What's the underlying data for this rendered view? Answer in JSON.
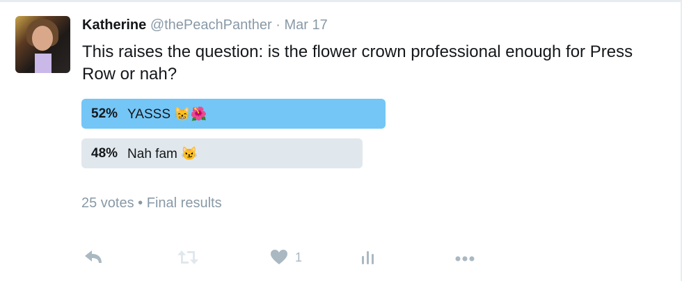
{
  "tweet": {
    "author_name": "Katherine",
    "handle": "@thePeachPanther",
    "separator": "·",
    "date": "Mar 17",
    "text": "This raises the question: is the flower crown professional enough for Press Row or nah?"
  },
  "poll": {
    "options": [
      {
        "percent": "52%",
        "label": "YASSS 😸🌺",
        "value": 52,
        "winner": true
      },
      {
        "percent": "48%",
        "label": "Nah fam 😼",
        "value": 48,
        "winner": false
      }
    ],
    "votes": "25 votes",
    "bullet": "•",
    "status": "Final results"
  },
  "actions": {
    "reply": "reply-icon",
    "retweet": "retweet-icon",
    "like": "heart-icon",
    "like_count": "1",
    "analytics": "analytics-icon",
    "more": "more-icon"
  },
  "colors": {
    "winner_bar": "#74c6f7",
    "loser_bar": "#e1e8ed",
    "icon": "#aab8c2"
  }
}
